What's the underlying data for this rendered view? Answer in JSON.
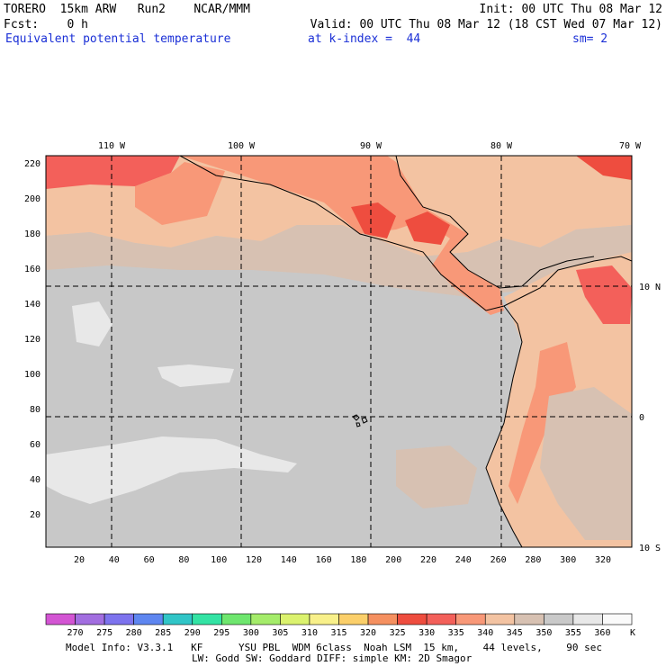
{
  "header": {
    "model": "TORERO  15km ARW   Run2    NCAR/MMM",
    "init": "Init: 00 UTC Thu 08 Mar 12",
    "fcst": "Fcst:    0 h",
    "valid": "Valid: 00 UTC Thu 08 Mar 12 (18 CST Wed 07 Mar 12)",
    "field": "Equivalent potential temperature",
    "level": "at k-index =  44",
    "smoothing": "sm= 2"
  },
  "map": {
    "top_lon_labels": [
      "110 W",
      "100 W",
      "90 W",
      "80 W",
      "70 W"
    ],
    "right_lat_labels": [
      "10 N",
      "0",
      "10 S"
    ],
    "left_grid_labels": [
      "220",
      "200",
      "180",
      "160",
      "140",
      "120",
      "100",
      "80",
      "60",
      "40",
      "20"
    ],
    "bottom_grid_labels": [
      "20",
      "40",
      "60",
      "80",
      "100",
      "120",
      "140",
      "160",
      "180",
      "200",
      "220",
      "240",
      "260",
      "280",
      "300",
      "320"
    ],
    "ocean_color": "#c8c8c8",
    "coast_color": "#000000"
  },
  "colorbar": {
    "labels": [
      "270",
      "275",
      "280",
      "285",
      "290",
      "295",
      "300",
      "305",
      "310",
      "315",
      "320",
      "325",
      "330",
      "335",
      "340",
      "345",
      "350",
      "355",
      "360"
    ],
    "unit": "K",
    "colors": [
      "#d355d3",
      "#a26ee0",
      "#7d73ee",
      "#5e86f0",
      "#30c5c7",
      "#33e3a4",
      "#6ee66e",
      "#a4ec6a",
      "#dbf26e",
      "#f8f08a",
      "#fbcf6a",
      "#f59060",
      "#ee4d3f",
      "#f3605a",
      "#f89878",
      "#f3c3a2",
      "#d7c1b2",
      "#c9c9c9",
      "#e8e8e8",
      "#fafafa"
    ]
  },
  "footer": {
    "line1": "Model Info: V3.3.1   KF      YSU PBL  WDM 6class  Noah LSM  15 km,    44 levels,    90 sec",
    "line2": "LW: Godd SW: Goddard DIFF: simple KM: 2D Smagor"
  }
}
